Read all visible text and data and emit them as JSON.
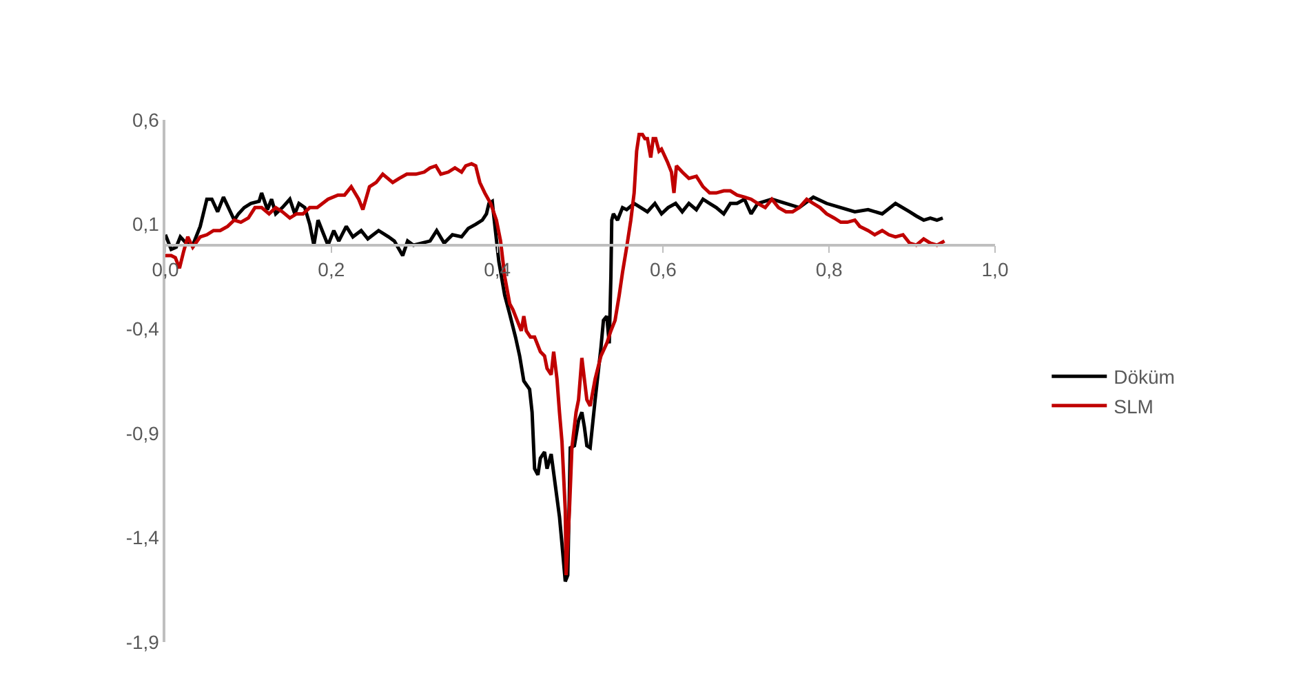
{
  "chart_data": {
    "type": "line",
    "xlim": [
      0,
      1
    ],
    "ylim": [
      -1.9,
      0.6
    ],
    "xticks": [
      {
        "value": 0,
        "label": "0,0"
      },
      {
        "value": 0.2,
        "label": "0,2"
      },
      {
        "value": 0.4,
        "label": "0,4"
      },
      {
        "value": 0.6,
        "label": "0,6"
      },
      {
        "value": 0.8,
        "label": "0,8"
      },
      {
        "value": 1,
        "label": "1,0"
      }
    ],
    "yticks": [
      {
        "value": -1.9,
        "label": "-1,9"
      },
      {
        "value": -1.4,
        "label": "-1,4"
      },
      {
        "value": -0.9,
        "label": "-0,9"
      },
      {
        "value": -0.4,
        "label": "-0,4"
      },
      {
        "value": 0.1,
        "label": "0,1"
      },
      {
        "value": 0.6,
        "label": "0,6"
      }
    ],
    "grid": false,
    "legend": "right",
    "marker": "none",
    "line_style": "solid",
    "series": [
      {
        "name": "Döküm",
        "color": "#000000",
        "x": [
          0.0,
          0.007,
          0.013,
          0.018,
          0.025,
          0.033,
          0.042,
          0.05,
          0.056,
          0.063,
          0.07,
          0.076,
          0.083,
          0.088,
          0.095,
          0.103,
          0.113,
          0.116,
          0.123,
          0.128,
          0.133,
          0.141,
          0.15,
          0.156,
          0.161,
          0.168,
          0.174,
          0.179,
          0.184,
          0.191,
          0.196,
          0.203,
          0.209,
          0.218,
          0.226,
          0.236,
          0.244,
          0.257,
          0.269,
          0.276,
          0.286,
          0.292,
          0.299,
          0.309,
          0.319,
          0.327,
          0.336,
          0.346,
          0.357,
          0.365,
          0.374,
          0.382,
          0.387,
          0.39,
          0.394,
          0.395,
          0.402,
          0.409,
          0.415,
          0.422,
          0.427,
          0.432,
          0.439,
          0.442,
          0.445,
          0.449,
          0.452,
          0.457,
          0.46,
          0.465,
          0.47,
          0.475,
          0.478,
          0.482,
          0.485,
          0.488,
          0.493,
          0.498,
          0.502,
          0.505,
          0.508,
          0.512,
          0.518,
          0.525,
          0.528,
          0.532,
          0.535,
          0.537,
          0.538,
          0.54,
          0.545,
          0.551,
          0.556,
          0.565,
          0.573,
          0.581,
          0.59,
          0.598,
          0.606,
          0.615,
          0.623,
          0.631,
          0.64,
          0.648,
          0.656,
          0.664,
          0.673,
          0.681,
          0.689,
          0.698,
          0.706,
          0.714,
          0.731,
          0.748,
          0.764,
          0.781,
          0.797,
          0.814,
          0.831,
          0.847,
          0.864,
          0.88,
          0.897,
          0.905,
          0.914,
          0.922,
          0.93,
          0.937
        ],
        "values": [
          0.05,
          -0.02,
          -0.01,
          0.04,
          0.01,
          0.0,
          0.09,
          0.22,
          0.22,
          0.16,
          0.23,
          0.18,
          0.12,
          0.15,
          0.18,
          0.2,
          0.21,
          0.25,
          0.17,
          0.22,
          0.15,
          0.18,
          0.22,
          0.15,
          0.2,
          0.18,
          0.1,
          0.0,
          0.12,
          0.05,
          0.0,
          0.07,
          0.02,
          0.09,
          0.04,
          0.07,
          0.03,
          0.07,
          0.04,
          0.02,
          -0.05,
          0.02,
          0.0,
          0.01,
          0.02,
          0.07,
          0.01,
          0.05,
          0.04,
          0.08,
          0.1,
          0.12,
          0.15,
          0.2,
          0.21,
          0.17,
          -0.08,
          -0.24,
          -0.33,
          -0.44,
          -0.53,
          -0.65,
          -0.69,
          -0.8,
          -1.07,
          -1.1,
          -1.02,
          -0.99,
          -1.07,
          -1.0,
          -1.15,
          -1.3,
          -1.43,
          -1.61,
          -1.58,
          -0.97,
          -0.96,
          -0.84,
          -0.8,
          -0.87,
          -0.96,
          -0.97,
          -0.74,
          -0.49,
          -0.36,
          -0.34,
          -0.47,
          -0.15,
          0.12,
          0.15,
          0.12,
          0.18,
          0.17,
          0.2,
          0.18,
          0.16,
          0.2,
          0.15,
          0.18,
          0.2,
          0.16,
          0.2,
          0.17,
          0.22,
          0.2,
          0.18,
          0.15,
          0.2,
          0.2,
          0.22,
          0.15,
          0.2,
          0.22,
          0.2,
          0.18,
          0.23,
          0.2,
          0.18,
          0.16,
          0.17,
          0.15,
          0.2,
          0.16,
          0.14,
          0.12,
          0.13,
          0.12,
          0.13
        ]
      },
      {
        "name": "SLM",
        "color": "#c00000",
        "x": [
          0.0,
          0.007,
          0.012,
          0.017,
          0.022,
          0.027,
          0.033,
          0.042,
          0.05,
          0.058,
          0.066,
          0.075,
          0.083,
          0.091,
          0.1,
          0.108,
          0.116,
          0.125,
          0.133,
          0.141,
          0.15,
          0.158,
          0.166,
          0.174,
          0.183,
          0.196,
          0.208,
          0.216,
          0.224,
          0.233,
          0.238,
          0.246,
          0.254,
          0.262,
          0.274,
          0.282,
          0.291,
          0.302,
          0.312,
          0.319,
          0.326,
          0.332,
          0.341,
          0.349,
          0.357,
          0.362,
          0.369,
          0.374,
          0.379,
          0.385,
          0.392,
          0.399,
          0.404,
          0.409,
          0.415,
          0.419,
          0.424,
          0.429,
          0.432,
          0.435,
          0.44,
          0.445,
          0.452,
          0.457,
          0.46,
          0.465,
          0.468,
          0.472,
          0.475,
          0.478,
          0.482,
          0.483,
          0.487,
          0.49,
          0.495,
          0.498,
          0.502,
          0.505,
          0.508,
          0.512,
          0.518,
          0.525,
          0.532,
          0.537,
          0.542,
          0.547,
          0.551,
          0.556,
          0.561,
          0.565,
          0.568,
          0.571,
          0.575,
          0.578,
          0.581,
          0.585,
          0.588,
          0.591,
          0.595,
          0.598,
          0.605,
          0.61,
          0.613,
          0.616,
          0.623,
          0.631,
          0.64,
          0.648,
          0.656,
          0.664,
          0.673,
          0.681,
          0.689,
          0.698,
          0.706,
          0.714,
          0.723,
          0.731,
          0.739,
          0.748,
          0.756,
          0.764,
          0.773,
          0.781,
          0.789,
          0.797,
          0.806,
          0.814,
          0.822,
          0.831,
          0.837,
          0.847,
          0.855,
          0.864,
          0.872,
          0.88,
          0.889,
          0.897,
          0.905,
          0.914,
          0.922,
          0.93,
          0.939
        ],
        "values": [
          -0.05,
          -0.05,
          -0.06,
          -0.11,
          -0.03,
          0.04,
          -0.01,
          0.04,
          0.05,
          0.07,
          0.07,
          0.09,
          0.12,
          0.11,
          0.13,
          0.18,
          0.18,
          0.15,
          0.18,
          0.16,
          0.13,
          0.15,
          0.15,
          0.18,
          0.18,
          0.22,
          0.24,
          0.24,
          0.28,
          0.22,
          0.17,
          0.28,
          0.3,
          0.34,
          0.3,
          0.32,
          0.34,
          0.34,
          0.35,
          0.37,
          0.38,
          0.34,
          0.35,
          0.37,
          0.35,
          0.38,
          0.39,
          0.38,
          0.3,
          0.25,
          0.2,
          0.12,
          0.02,
          -0.15,
          -0.28,
          -0.31,
          -0.36,
          -0.41,
          -0.34,
          -0.41,
          -0.44,
          -0.44,
          -0.51,
          -0.53,
          -0.59,
          -0.62,
          -0.51,
          -0.64,
          -0.8,
          -0.94,
          -1.27,
          -1.58,
          -1.27,
          -0.97,
          -0.8,
          -0.74,
          -0.54,
          -0.64,
          -0.74,
          -0.77,
          -0.64,
          -0.53,
          -0.47,
          -0.41,
          -0.36,
          -0.24,
          -0.13,
          -0.01,
          0.12,
          0.25,
          0.45,
          0.53,
          0.53,
          0.51,
          0.51,
          0.42,
          0.51,
          0.51,
          0.45,
          0.46,
          0.4,
          0.35,
          0.25,
          0.38,
          0.35,
          0.32,
          0.33,
          0.28,
          0.25,
          0.25,
          0.26,
          0.26,
          0.24,
          0.23,
          0.22,
          0.2,
          0.18,
          0.22,
          0.18,
          0.16,
          0.16,
          0.18,
          0.22,
          0.2,
          0.18,
          0.15,
          0.13,
          0.11,
          0.11,
          0.12,
          0.09,
          0.07,
          0.05,
          0.07,
          0.05,
          0.04,
          0.05,
          0.01,
          0.0,
          0.03,
          0.01,
          0.0,
          0.02
        ]
      }
    ]
  }
}
